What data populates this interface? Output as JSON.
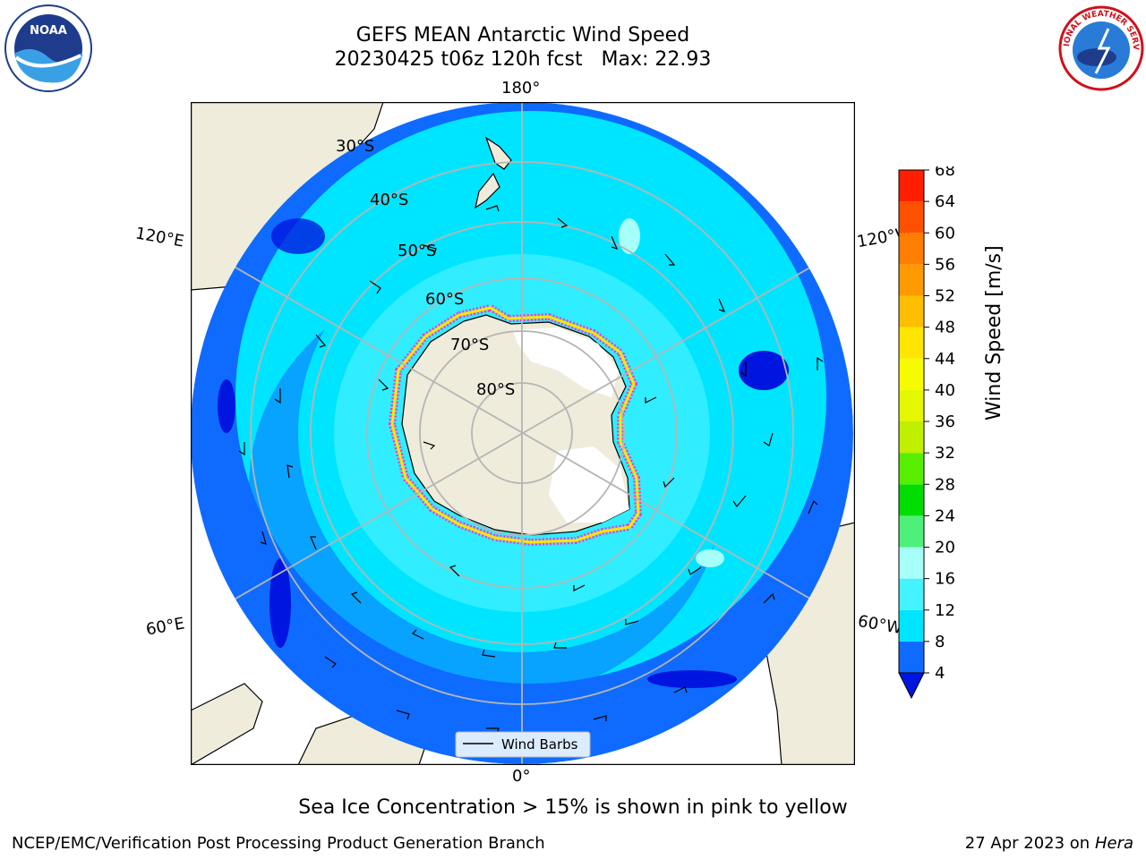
{
  "title": {
    "line1": "GEFS MEAN Antarctic Wind Speed",
    "line2": "20230425 t06z 120h fcst   Max: 22.93"
  },
  "map": {
    "lat_labels": [
      "30°S",
      "40°S",
      "50°S",
      "60°S",
      "70°S",
      "80°S"
    ],
    "lon_labels": {
      "top": "180°",
      "bottom": "0°",
      "upper_left": "120°E",
      "upper_right": "120°W",
      "lower_left": "60°E",
      "lower_right": "60°W"
    },
    "legend_label": "Wind Barbs",
    "land_color": "#efecdc",
    "ice_color": "#ff33cc"
  },
  "colorbar": {
    "ticks": [
      4,
      8,
      12,
      16,
      20,
      24,
      28,
      32,
      36,
      40,
      44,
      48,
      52,
      56,
      60,
      64,
      68
    ],
    "colors": [
      "#0f6bff",
      "#00e5ff",
      "#45f2ff",
      "#a6fff8",
      "#4ef07a",
      "#00dd00",
      "#58ee00",
      "#bff000",
      "#e5f700",
      "#f7fb00",
      "#ffe500",
      "#ffbf00",
      "#ff9a00",
      "#ff7d00",
      "#ff5000",
      "#ff1e00"
    ],
    "under_color": "#0016e0",
    "label": "Wind Speed [m/s]"
  },
  "footer": {
    "note": "Sea Ice Concentration > 15% is shown in pink to yellow",
    "left": "NCEP/EMC/Verification Post Processing Product Generation Branch",
    "date": "27 Apr 2023 on ",
    "host": "Hera"
  },
  "logos": {
    "left": "NOAA",
    "right": "NATIONAL WEATHER SERVICE"
  }
}
